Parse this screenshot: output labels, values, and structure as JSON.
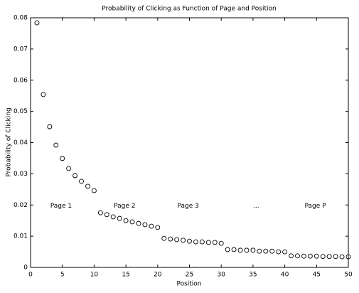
{
  "chart_data": {
    "type": "scatter",
    "title": "Probability of Clicking as Function of Page and Position",
    "x_label": "Position",
    "y_label": "Probability of Clicking",
    "x": [
      1,
      2,
      3,
      4,
      5,
      6,
      7,
      8,
      9,
      10,
      11,
      12,
      13,
      14,
      15,
      16,
      17,
      18,
      19,
      20,
      21,
      22,
      23,
      24,
      25,
      26,
      27,
      28,
      29,
      30,
      31,
      32,
      33,
      34,
      35,
      36,
      37,
      38,
      39,
      40,
      41,
      42,
      43,
      44,
      45,
      46,
      47,
      48,
      49,
      50
    ],
    "values": [
      0.0784,
      0.0554,
      0.0451,
      0.0392,
      0.0349,
      0.0317,
      0.0294,
      0.0276,
      0.026,
      0.0246,
      0.0175,
      0.0169,
      0.0162,
      0.0157,
      0.015,
      0.0146,
      0.0141,
      0.0137,
      0.0132,
      0.0128,
      0.0093,
      0.0091,
      0.0089,
      0.0087,
      0.0084,
      0.0082,
      0.0082,
      0.008,
      0.008,
      0.0077,
      0.0057,
      0.0057,
      0.0055,
      0.0055,
      0.0055,
      0.0052,
      0.0052,
      0.0052,
      0.005,
      0.005,
      0.0037,
      0.0037,
      0.0036,
      0.0036,
      0.0036,
      0.0035,
      0.0035,
      0.0035,
      0.0034,
      0.0034
    ],
    "color": "#000000",
    "xlim": [
      0,
      50
    ],
    "ylim": [
      0,
      0.08
    ],
    "xticks": [
      0,
      5,
      10,
      15,
      20,
      25,
      30,
      35,
      40,
      45,
      50
    ],
    "yticks": [
      0,
      0.01,
      0.02,
      0.03,
      0.04,
      0.05,
      0.06,
      0.07,
      0.08
    ],
    "annotations": [
      {
        "text": "Page 1",
        "x": 4.8,
        "y": 0.0197
      },
      {
        "text": "Page 2",
        "x": 14.8,
        "y": 0.0197
      },
      {
        "text": "Page 3",
        "x": 24.8,
        "y": 0.0197
      },
      {
        "text": "...",
        "x": 35.5,
        "y": 0.0197
      },
      {
        "text": "Page P",
        "x": 44.8,
        "y": 0.0197
      }
    ]
  }
}
